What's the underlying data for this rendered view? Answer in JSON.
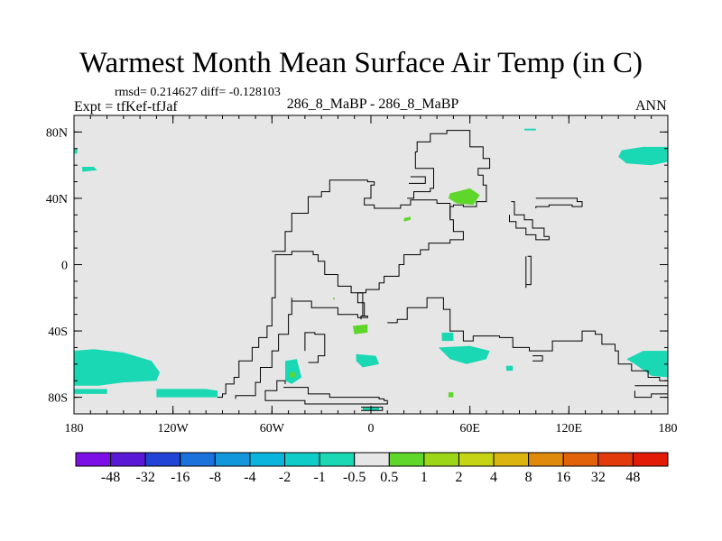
{
  "header": {
    "title": "Warmest Month Mean Surface Air Temp (in C)",
    "stats": "rmsd= 0.214627 diff= -0.128103",
    "experiment": "Expt = tfKef-tfJaf",
    "subtitle": "286_8_MaBP - 286_8_MaBP",
    "period": "ANN"
  },
  "chart_data": {
    "type": "heatmap",
    "title": "Warmest Month Mean Surface Air Temp (in C)",
    "xlim": [
      -180,
      180
    ],
    "ylim": [
      -90,
      90
    ],
    "x_ticks": [
      {
        "value": -180,
        "label": "180"
      },
      {
        "value": -120,
        "label": "120W"
      },
      {
        "value": -60,
        "label": "60W"
      },
      {
        "value": 0,
        "label": "0"
      },
      {
        "value": 60,
        "label": "60E"
      },
      {
        "value": 120,
        "label": "120E"
      },
      {
        "value": 180,
        "label": "180"
      }
    ],
    "y_ticks": [
      {
        "value": 80,
        "label": "80N"
      },
      {
        "value": 40,
        "label": "40N"
      },
      {
        "value": 0,
        "label": "0"
      },
      {
        "value": -40,
        "label": "40S"
      },
      {
        "value": -80,
        "label": "80S"
      }
    ],
    "background_color": "#e6e6e6",
    "colorbar": {
      "labels": [
        "-48",
        "-32",
        "-16",
        "-8",
        "-4",
        "-2",
        "-1",
        "-0.5",
        "0.5",
        "1",
        "2",
        "4",
        "8",
        "16",
        "32",
        "48"
      ],
      "colors": [
        "#7b0fe6",
        "#5a18d6",
        "#2244d6",
        "#1a72da",
        "#1296dc",
        "#0ab4dc",
        "#10ccc8",
        "#1ad8b4",
        "#e6e6e6",
        "#5ed62a",
        "#9cd618",
        "#c6d416",
        "#dcb410",
        "#e08a0c",
        "#e2620a",
        "#e23a0a",
        "#e21a06"
      ]
    },
    "anomaly_regions": [
      {
        "value_range": [
          -1,
          -0.5
        ],
        "color": "#1ad8b4",
        "polygon": [
          [
            -180,
            -52
          ],
          [
            -168,
            -51
          ],
          [
            -150,
            -53
          ],
          [
            -133,
            -58
          ],
          [
            -128,
            -65
          ],
          [
            -130,
            -70
          ],
          [
            -150,
            -71
          ],
          [
            -165,
            -73
          ],
          [
            -180,
            -73
          ]
        ]
      },
      {
        "value_range": [
          -1,
          -0.5
        ],
        "color": "#1ad8b4",
        "polygon": [
          [
            -130,
            -75
          ],
          [
            -100,
            -75
          ],
          [
            -93,
            -76
          ],
          [
            -93,
            -80
          ],
          [
            -130,
            -80
          ]
        ]
      },
      {
        "value_range": [
          -1,
          -0.5
        ],
        "color": "#1ad8b4",
        "polygon": [
          [
            -180,
            -75
          ],
          [
            -160,
            -75
          ],
          [
            -160,
            -78
          ],
          [
            -180,
            -78
          ]
        ]
      },
      {
        "value_range": [
          -1,
          -0.5
        ],
        "color": "#1ad8b4",
        "polygon": [
          [
            -175,
            59
          ],
          [
            -168,
            59
          ],
          [
            -166,
            57
          ],
          [
            -175,
            56
          ]
        ]
      },
      {
        "value_range": [
          -1,
          -0.5
        ],
        "color": "#1ad8b4",
        "polygon": [
          [
            152,
            69
          ],
          [
            165,
            71
          ],
          [
            180,
            71
          ],
          [
            180,
            62
          ],
          [
            170,
            60
          ],
          [
            155,
            61
          ],
          [
            150,
            65
          ]
        ]
      },
      {
        "value_range": [
          -1,
          -0.5
        ],
        "color": "#1ad8b4",
        "polygon": [
          [
            -52,
            -58
          ],
          [
            -45,
            -57
          ],
          [
            -42,
            -68
          ],
          [
            -48,
            -72
          ],
          [
            -52,
            -70
          ]
        ]
      },
      {
        "value_range": [
          -1,
          -0.5
        ],
        "color": "#1ad8b4",
        "polygon": [
          [
            -9,
            -54
          ],
          [
            3,
            -55
          ],
          [
            5,
            -60
          ],
          [
            -5,
            -62
          ],
          [
            -9,
            -58
          ]
        ]
      },
      {
        "value_range": [
          -1,
          -0.5
        ],
        "color": "#1ad8b4",
        "polygon": [
          [
            41,
            -50
          ],
          [
            60,
            -49
          ],
          [
            72,
            -52
          ],
          [
            70,
            -57
          ],
          [
            58,
            -60
          ],
          [
            48,
            -57
          ]
        ]
      },
      {
        "value_range": [
          -1,
          -0.5
        ],
        "color": "#1ad8b4",
        "polygon": [
          [
            43,
            -41
          ],
          [
            50,
            -41
          ],
          [
            50,
            -46
          ],
          [
            43,
            -46
          ]
        ]
      },
      {
        "value_range": [
          -1,
          -0.5
        ],
        "color": "#1ad8b4",
        "polygon": [
          [
            82,
            -61
          ],
          [
            86,
            -61
          ],
          [
            86,
            -64
          ],
          [
            82,
            -64
          ]
        ]
      },
      {
        "value_range": [
          -1,
          -0.5
        ],
        "color": "#1ad8b4",
        "polygon": [
          [
            155,
            -57
          ],
          [
            165,
            -52
          ],
          [
            180,
            -52
          ],
          [
            180,
            -68
          ],
          [
            170,
            -67
          ],
          [
            160,
            -60
          ]
        ]
      },
      {
        "value_range": [
          -1,
          -0.5
        ],
        "color": "#1ad8b4",
        "polygon": [
          [
            -5,
            -86
          ],
          [
            5,
            -86
          ],
          [
            5,
            -88
          ],
          [
            -5,
            -88
          ]
        ]
      },
      {
        "value_range": [
          -1,
          -0.5
        ],
        "color": "#1ad8b4",
        "polygon": [
          [
            93,
            82
          ],
          [
            100,
            82
          ],
          [
            100,
            81
          ],
          [
            93,
            81
          ]
        ]
      },
      {
        "value_range": [
          -1,
          -0.5
        ],
        "color": "#1ad8b4",
        "polygon": [
          [
            -180,
            70
          ],
          [
            -178,
            70
          ],
          [
            -178,
            67
          ],
          [
            -180,
            67
          ]
        ]
      },
      {
        "value_range": [
          0.5,
          1
        ],
        "color": "#5ed62a",
        "polygon": [
          [
            48,
            43
          ],
          [
            60,
            46
          ],
          [
            66,
            42
          ],
          [
            62,
            36
          ],
          [
            52,
            37
          ],
          [
            47,
            40
          ]
        ]
      },
      {
        "value_range": [
          0.5,
          1
        ],
        "color": "#5ed62a",
        "polygon": [
          [
            -11,
            -37
          ],
          [
            -2,
            -36
          ],
          [
            -2,
            -41
          ],
          [
            -10,
            -42
          ]
        ]
      },
      {
        "value_range": [
          0.5,
          1
        ],
        "color": "#5ed62a",
        "polygon": [
          [
            20,
            28
          ],
          [
            24,
            29
          ],
          [
            24,
            27
          ],
          [
            20,
            26
          ]
        ]
      },
      {
        "value_range": [
          0.5,
          1
        ],
        "color": "#5ed62a",
        "polygon": [
          [
            47,
            -77
          ],
          [
            50,
            -77
          ],
          [
            50,
            -80
          ],
          [
            47,
            -80
          ]
        ]
      },
      {
        "value_range": [
          0.5,
          1
        ],
        "color": "#5ed62a",
        "polygon": [
          [
            -23,
            -20
          ],
          [
            -22,
            -20
          ],
          [
            -22,
            -21
          ],
          [
            -23,
            -21
          ]
        ]
      },
      {
        "value_range": [
          0.5,
          1
        ],
        "color": "#5ed62a",
        "polygon": [
          [
            -49,
            -65
          ],
          [
            -46,
            -65
          ],
          [
            -46,
            -68
          ],
          [
            -49,
            -68
          ]
        ]
      }
    ],
    "coastlines": [
      [
        [
          -93,
          -80
        ],
        [
          -90,
          -78
        ],
        [
          -88,
          -72
        ],
        [
          -83,
          -68
        ],
        [
          -80,
          -58
        ],
        [
          -72,
          -50
        ],
        [
          -68,
          -44
        ],
        [
          -63,
          -37
        ],
        [
          -60,
          -28
        ],
        [
          -60,
          -20
        ],
        [
          -58,
          -12
        ],
        [
          -58,
          6
        ],
        [
          -48,
          8
        ],
        [
          -35,
          6
        ],
        [
          -32,
          2
        ],
        [
          -28,
          -6
        ],
        [
          -20,
          -13
        ],
        [
          -12,
          -17
        ],
        [
          -5,
          -31
        ],
        [
          -2,
          -32
        ],
        [
          -8,
          -30
        ],
        [
          -20,
          -26
        ],
        [
          -36,
          -22
        ],
        [
          -48,
          -20
        ],
        [
          -48,
          -30
        ],
        [
          -50,
          -42
        ],
        [
          -56,
          -52
        ],
        [
          -60,
          -62
        ],
        [
          -67,
          -71
        ],
        [
          -70,
          -79
        ],
        [
          -82,
          -81
        ]
      ],
      [
        [
          -53,
          -74
        ],
        [
          -43,
          -74
        ],
        [
          -38,
          -78
        ],
        [
          -25,
          -80
        ],
        [
          -8,
          -80
        ],
        [
          5,
          -81
        ],
        [
          8,
          -82
        ],
        [
          10,
          -84
        ],
        [
          -5,
          -84
        ],
        [
          -40,
          -82
        ],
        [
          -62,
          -82
        ],
        [
          -64,
          -76
        ],
        [
          -57,
          -70
        ],
        [
          -52,
          -72
        ]
      ],
      [
        [
          -38,
          -59
        ],
        [
          -32,
          -55
        ],
        [
          -28,
          -42
        ],
        [
          -34,
          -41
        ],
        [
          -40,
          -52
        ]
      ],
      [
        [
          -6,
          -86
        ],
        [
          7,
          -86
        ],
        [
          7,
          -88
        ],
        [
          -6,
          -88
        ]
      ],
      [
        [
          -60,
          8
        ],
        [
          -52,
          20
        ],
        [
          -48,
          31
        ],
        [
          -38,
          41
        ],
        [
          -30,
          44
        ],
        [
          -25,
          51
        ],
        [
          -10,
          51
        ],
        [
          -2,
          50
        ],
        [
          2,
          48
        ],
        [
          0,
          40
        ],
        [
          -4,
          36
        ],
        [
          2,
          34
        ],
        [
          18,
          36
        ],
        [
          24,
          39
        ],
        [
          40,
          37
        ],
        [
          48,
          27
        ],
        [
          50,
          20
        ],
        [
          56,
          15
        ],
        [
          48,
          13
        ],
        [
          35,
          9
        ],
        [
          30,
          6
        ],
        [
          20,
          0
        ],
        [
          17,
          -7
        ],
        [
          8,
          -11
        ],
        [
          5,
          -15
        ],
        [
          -3,
          -17
        ],
        [
          -8,
          -23
        ],
        [
          -4,
          -31
        ],
        [
          -6,
          -33
        ]
      ],
      [
        [
          22,
          40
        ],
        [
          26,
          44
        ],
        [
          36,
          46
        ],
        [
          38,
          58
        ],
        [
          27,
          68
        ],
        [
          28,
          74
        ],
        [
          36,
          79
        ],
        [
          46,
          81
        ],
        [
          60,
          71
        ],
        [
          68,
          64
        ],
        [
          72,
          58
        ],
        [
          65,
          54
        ],
        [
          68,
          48
        ],
        [
          70,
          38
        ],
        [
          64,
          35
        ],
        [
          56,
          36
        ],
        [
          50,
          35
        ],
        [
          48,
          28
        ]
      ],
      [
        [
          24,
          53
        ],
        [
          33,
          53
        ],
        [
          33,
          49
        ],
        [
          23,
          49
        ]
      ],
      [
        [
          85,
          38
        ],
        [
          87,
          30
        ],
        [
          93,
          27
        ],
        [
          98,
          22
        ],
        [
          105,
          17
        ],
        [
          108,
          15
        ],
        [
          100,
          18
        ],
        [
          94,
          22
        ],
        [
          88,
          26
        ],
        [
          84,
          30
        ]
      ],
      [
        [
          100,
          40
        ],
        [
          112,
          40
        ],
        [
          125,
          38
        ],
        [
          128,
          35
        ],
        [
          122,
          36
        ],
        [
          108,
          35
        ],
        [
          100,
          34
        ]
      ],
      [
        [
          95,
          5
        ],
        [
          97,
          -2
        ],
        [
          97,
          -12
        ],
        [
          94,
          -14
        ],
        [
          94,
          5
        ]
      ],
      [
        [
          10,
          -35
        ],
        [
          16,
          -33
        ],
        [
          22,
          -26
        ],
        [
          34,
          -20
        ],
        [
          44,
          -27
        ],
        [
          48,
          -40
        ],
        [
          56,
          -46
        ],
        [
          62,
          -43
        ],
        [
          70,
          -43
        ],
        [
          78,
          -44
        ],
        [
          86,
          -50
        ],
        [
          96,
          -52
        ],
        [
          110,
          -46
        ],
        [
          128,
          -40
        ],
        [
          136,
          -42
        ],
        [
          140,
          -48
        ],
        [
          148,
          -52
        ],
        [
          150,
          -60
        ],
        [
          158,
          -64
        ],
        [
          168,
          -68
        ],
        [
          175,
          -70
        ],
        [
          180,
          -71
        ]
      ],
      [
        [
          160,
          -73
        ],
        [
          175,
          -73
        ],
        [
          180,
          -78
        ],
        [
          170,
          -80
        ],
        [
          160,
          -76
        ]
      ],
      [
        [
          98,
          -55
        ],
        [
          104,
          -55
        ],
        [
          104,
          -58
        ],
        [
          98,
          -58
        ]
      ]
    ]
  }
}
